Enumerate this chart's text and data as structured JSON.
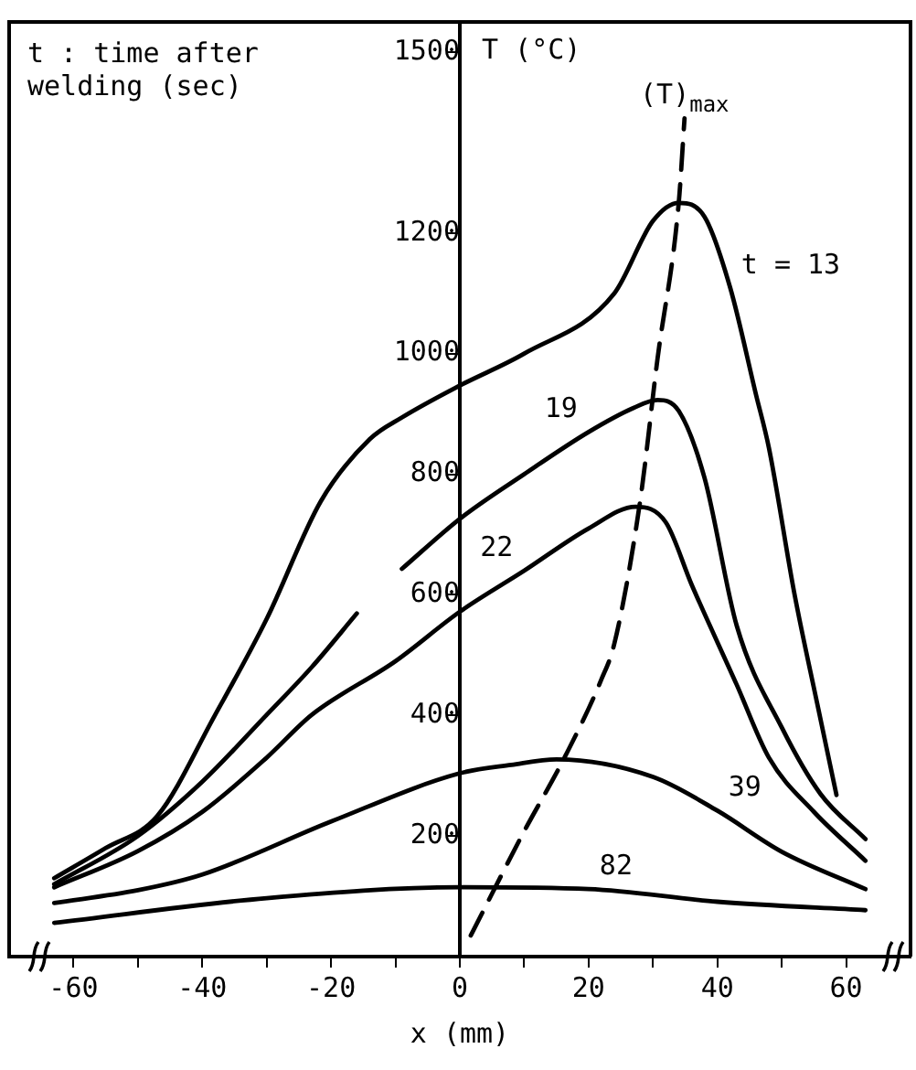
{
  "chart_data": {
    "type": "line",
    "xlabel": "x (mm)",
    "ylabel": "T (°C)",
    "xlim": [
      -70,
      70
    ],
    "ylim": [
      0,
      1550
    ],
    "xticks": [
      -60,
      {
        "value": -50,
        "label": null
      },
      -40,
      {
        "value": -30,
        "label": null
      },
      -20,
      {
        "value": -10,
        "label": null
      },
      0,
      {
        "value": 10,
        "label": null
      },
      20,
      {
        "value": 30,
        "label": null
      },
      40,
      {
        "value": 50,
        "label": null
      },
      60
    ],
    "yticks": [
      200,
      400,
      600,
      800,
      1000,
      1200,
      1500
    ],
    "marker": "none",
    "line_style": "solid",
    "series": [
      {
        "color": "#000000",
        "x": [
          -63,
          -55,
          -47,
          -38,
          -30,
          -21.6,
          -14,
          -9,
          0,
          10,
          24,
          30,
          34,
          38,
          42,
          46,
          48,
          52,
          55.5,
          58.5
        ],
        "values": [
          130,
          180,
          233,
          401,
          560,
          755,
          858,
          894,
          947,
          1000,
          1100,
          1220,
          1250,
          1227,
          1109,
          932,
          844,
          600,
          420,
          268
        ]
      },
      {
        "color": "#000000",
        "x": [
          -63,
          -50,
          -40,
          -30,
          -23,
          -16,
          -12.5,
          -9,
          0,
          10,
          20,
          27,
          30.7,
          34,
          38,
          43,
          50,
          56,
          63
        ],
        "values": [
          120,
          200,
          290,
          401,
          480,
          569,
          null,
          643,
          726,
          800,
          870,
          910,
          923,
          905,
          794,
          549,
          380,
          270,
          195
        ]
      },
      {
        "color": "#000000",
        "x": [
          -63,
          -50,
          -40,
          -30,
          -23,
          -10,
          0,
          10,
          20,
          27.3,
          32,
          36,
          43,
          48,
          55,
          63
        ],
        "values": [
          115,
          175,
          240,
          330,
          401,
          490,
          572,
          640,
          710,
          746,
          720,
          617,
          451,
          330,
          240,
          159
        ]
      },
      {
        "color": "#000000",
        "x": [
          -63,
          -50,
          -40,
          -20,
          0,
          8,
          15,
          30,
          40,
          50,
          63
        ],
        "values": [
          89,
          110,
          136,
          224,
          304,
          318,
          327,
          298,
          242,
          174,
          112
        ]
      },
      {
        "color": "#000000",
        "x": [
          -63,
          -30,
          0,
          20,
          40,
          63
        ],
        "values": [
          56,
          97,
          115,
          112,
          91,
          77
        ]
      },
      {
        "color": "#000000",
        "line_style": "dashed",
        "x": [
          1.7,
          9.8,
          16.4,
          22,
          24,
          28,
          30.7,
          34,
          34.9
        ],
        "values": [
          35,
          204,
          333,
          460,
          519,
          755,
          991,
          1250,
          1390
        ]
      }
    ],
    "annotations": [
      "t : time after welding (sec)",
      {
        "text": "t = 13",
        "x": 42,
        "y": 1109
      },
      {
        "text": "19",
        "x": 20,
        "y": 870
      },
      {
        "text": "22",
        "x": 10,
        "y": 640
      },
      {
        "text": "39",
        "x": 40,
        "y": 242
      },
      {
        "text": "82",
        "x": 20,
        "y": 112
      },
      {
        "text": "(T)$_{max}$",
        "x": 34.9,
        "y": 1390
      }
    ]
  }
}
